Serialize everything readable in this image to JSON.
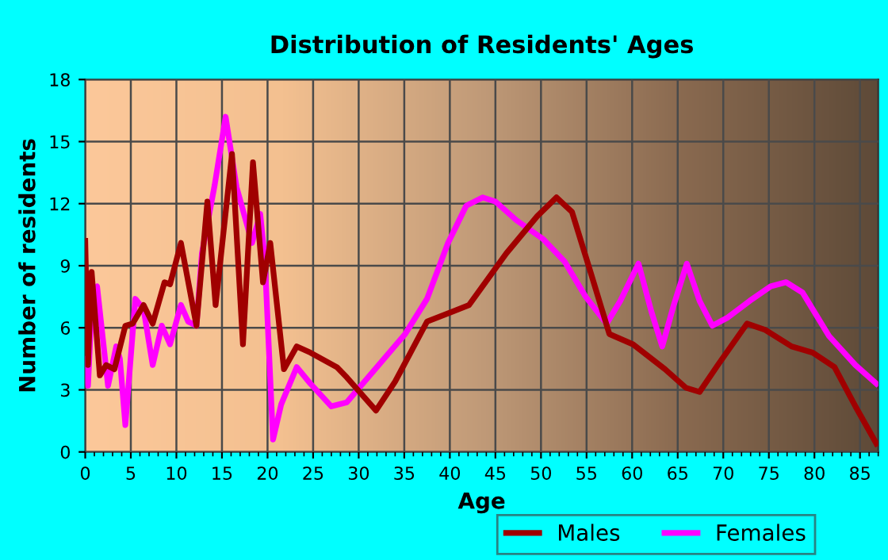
{
  "chart_data": {
    "type": "line",
    "title": "Distribution of Residents' Ages",
    "xlabel": "Age",
    "ylabel": "Number of residents",
    "xlim": [
      0,
      87
    ],
    "xticks": [
      0,
      5,
      10,
      15,
      20,
      25,
      30,
      35,
      40,
      45,
      50,
      55,
      60,
      65,
      70,
      75,
      80,
      85
    ],
    "ylim": [
      0,
      18
    ],
    "yticks": [
      0,
      3,
      6,
      9,
      12,
      15,
      18
    ],
    "grid": true,
    "legend": "bottom",
    "marker": "none",
    "line_style": "solid",
    "series": [
      {
        "name": "Males",
        "color": "#a00000",
        "x": [
          0,
          0.3,
          0.7,
          1.6,
          2.3,
          3.2,
          4.4,
          5.2,
          6.4,
          7.4,
          8.7,
          9.3,
          10.5,
          12.2,
          13.4,
          14.3,
          16.1,
          17.3,
          18.4,
          19.5,
          20.3,
          21.8,
          23.2,
          24.7,
          27.6,
          28.7,
          31.9,
          34.0,
          37.5,
          40.4,
          42.1,
          46.2,
          49.6,
          51.7,
          53.4,
          55.5,
          57.5,
          60.1,
          63.6,
          65.9,
          67.4,
          69.4,
          72.6,
          74.6,
          77.5,
          79.8,
          82.2,
          84.5,
          86.8
        ],
        "values": [
          10.2,
          4.2,
          8.7,
          3.7,
          4.2,
          4.0,
          6.1,
          6.2,
          7.1,
          6.2,
          8.2,
          8.1,
          10.1,
          6.1,
          12.1,
          7.1,
          14.4,
          5.2,
          14.0,
          8.2,
          10.1,
          4.0,
          5.1,
          4.8,
          4.1,
          3.6,
          2.0,
          3.4,
          6.3,
          6.8,
          7.1,
          9.6,
          11.4,
          12.3,
          11.6,
          8.6,
          5.7,
          5.2,
          4.0,
          3.1,
          2.9,
          4.2,
          6.2,
          5.9,
          5.1,
          4.8,
          4.1,
          2.2,
          0.4
        ]
      },
      {
        "name": "Females",
        "color": "#ff00ff",
        "x": [
          0,
          0.3,
          0.8,
          1.3,
          2.5,
          3.4,
          3.8,
          4.4,
          5.5,
          6.4,
          7.4,
          8.4,
          9.3,
          10.5,
          11.3,
          12.2,
          12.8,
          14.2,
          15.4,
          16.6,
          18.3,
          19.2,
          19.7,
          20.6,
          21.5,
          23.2,
          24.7,
          27.0,
          28.7,
          32.2,
          35.1,
          37.5,
          39.8,
          41.8,
          43.6,
          45.0,
          47.3,
          50.2,
          52.6,
          54.9,
          57.2,
          58.7,
          60.7,
          62.1,
          63.3,
          64.5,
          66.0,
          67.4,
          68.8,
          70.5,
          72.9,
          75.2,
          76.9,
          78.7,
          81.6,
          84.5,
          86.8
        ],
        "values": [
          4.5,
          3.2,
          7.8,
          8.0,
          3.2,
          5.1,
          4.5,
          1.3,
          7.4,
          6.9,
          4.2,
          6.1,
          5.2,
          7.1,
          6.3,
          6.1,
          9.6,
          12.9,
          16.2,
          12.8,
          10.1,
          11.5,
          9.3,
          0.6,
          2.3,
          4.1,
          3.3,
          2.2,
          2.4,
          4.2,
          5.7,
          7.4,
          10.1,
          11.9,
          12.3,
          12.1,
          11.2,
          10.3,
          9.2,
          7.5,
          6.2,
          7.3,
          9.1,
          6.8,
          5.1,
          7.0,
          9.1,
          7.3,
          6.1,
          6.5,
          7.3,
          8.0,
          8.2,
          7.7,
          5.6,
          4.2,
          3.3
        ]
      }
    ]
  }
}
